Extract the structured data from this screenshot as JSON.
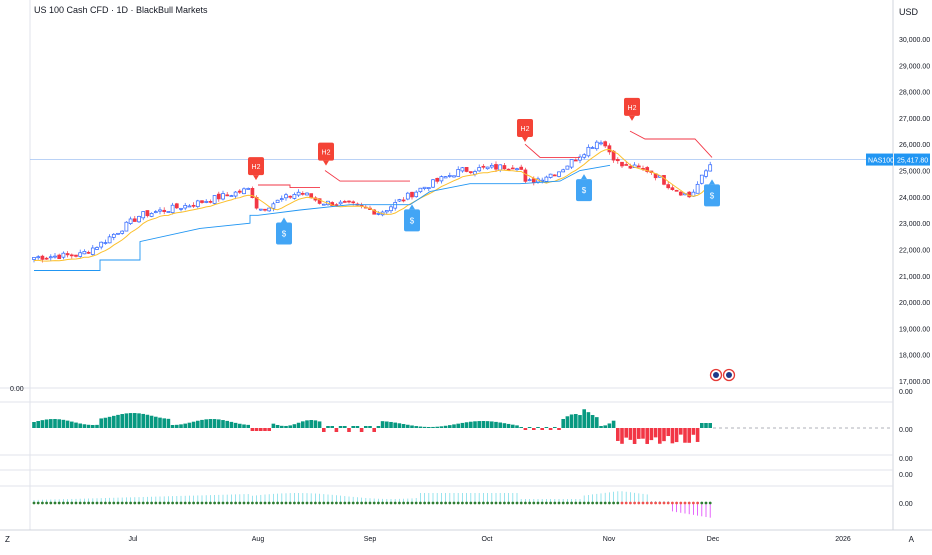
{
  "header": {
    "title": "US 100 Cash CFD · 1D · BlackBull Markets",
    "currency": "USD"
  },
  "price_axis": {
    "ticks": [
      "30,000.00",
      "29,000.00",
      "28,000.00",
      "27,000.00",
      "26,000.00",
      "25,000.00",
      "24,000.00",
      "23,000.00",
      "22,000.00",
      "21,000.00",
      "20,000.00",
      "19,000.00",
      "18,000.00",
      "17,000.00"
    ],
    "tick_values": [
      30000,
      29000,
      28000,
      27000,
      26000,
      25000,
      24000,
      23000,
      22000,
      21000,
      20000,
      19000,
      18000,
      17000
    ],
    "current_symbol": "NAS100",
    "current_price": "25,417.80",
    "current_value": 25417.8
  },
  "time_axis": {
    "labels": [
      "Jul",
      "Aug",
      "Sep",
      "Oct",
      "Nov",
      "Dec",
      "2026"
    ],
    "left_button": "Z",
    "right_button": "A"
  },
  "indicator_panes": {
    "top_left_value": "0.00",
    "pane1_axis": [
      "0.00",
      "0.00"
    ],
    "pane2_axis": [
      "0.00",
      "0.00"
    ],
    "pane3_axis": [
      "0.00"
    ]
  },
  "signal_labels": {
    "sell": "H2",
    "buy": "$"
  },
  "colors": {
    "up": "#2962ff",
    "down": "#f23645",
    "hist_up": "#089981",
    "hist_down": "#f23645",
    "upper_band": "#f23645",
    "lower_band": "#2196f3",
    "ma": "#fbc02d",
    "price_tag": "#2196f3",
    "buy_tag": "#42a5f5",
    "sell_tag": "#f44336"
  }
}
